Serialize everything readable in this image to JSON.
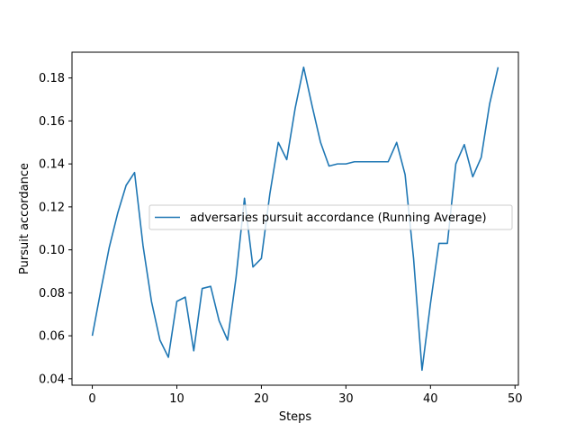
{
  "chart_data": {
    "type": "line",
    "title": "",
    "xlabel": "Steps",
    "ylabel": "Pursuit accordance",
    "xlim": [
      -2.4,
      50.4
    ],
    "ylim": [
      0.037,
      0.192
    ],
    "xticks": [
      0,
      10,
      20,
      30,
      40,
      50
    ],
    "yticks": [
      0.04,
      0.06,
      0.08,
      0.1,
      0.12,
      0.14,
      0.16,
      0.18
    ],
    "xtick_labels": [
      "0",
      "10",
      "20",
      "30",
      "40",
      "50"
    ],
    "ytick_labels": [
      "0.04",
      "0.06",
      "0.08",
      "0.10",
      "0.12",
      "0.14",
      "0.16",
      "0.18"
    ],
    "grid": false,
    "legend_position": "center-right",
    "series": [
      {
        "name": "adversaries pursuit accordance (Running Average)",
        "color": "#1f77b4",
        "x": [
          0,
          1,
          2,
          3,
          4,
          5,
          6,
          7,
          8,
          9,
          10,
          11,
          12,
          13,
          14,
          15,
          16,
          17,
          18,
          19,
          20,
          21,
          22,
          23,
          24,
          25,
          26,
          27,
          28,
          29,
          30,
          31,
          32,
          33,
          34,
          35,
          36,
          37,
          38,
          39,
          40,
          41,
          42,
          43,
          44,
          45,
          46,
          47,
          48
        ],
        "values": [
          0.06,
          0.081,
          0.101,
          0.117,
          0.13,
          0.136,
          0.102,
          0.076,
          0.058,
          0.05,
          0.076,
          0.078,
          0.053,
          0.082,
          0.083,
          0.067,
          0.058,
          0.087,
          0.124,
          0.092,
          0.096,
          0.126,
          0.15,
          0.142,
          0.166,
          0.185,
          0.167,
          0.15,
          0.139,
          0.14,
          0.14,
          0.141,
          0.141,
          0.141,
          0.141,
          0.141,
          0.15,
          0.135,
          0.096,
          0.044,
          0.075,
          0.103,
          0.103,
          0.14,
          0.149,
          0.134,
          0.143,
          0.168,
          0.185
        ]
      }
    ]
  }
}
